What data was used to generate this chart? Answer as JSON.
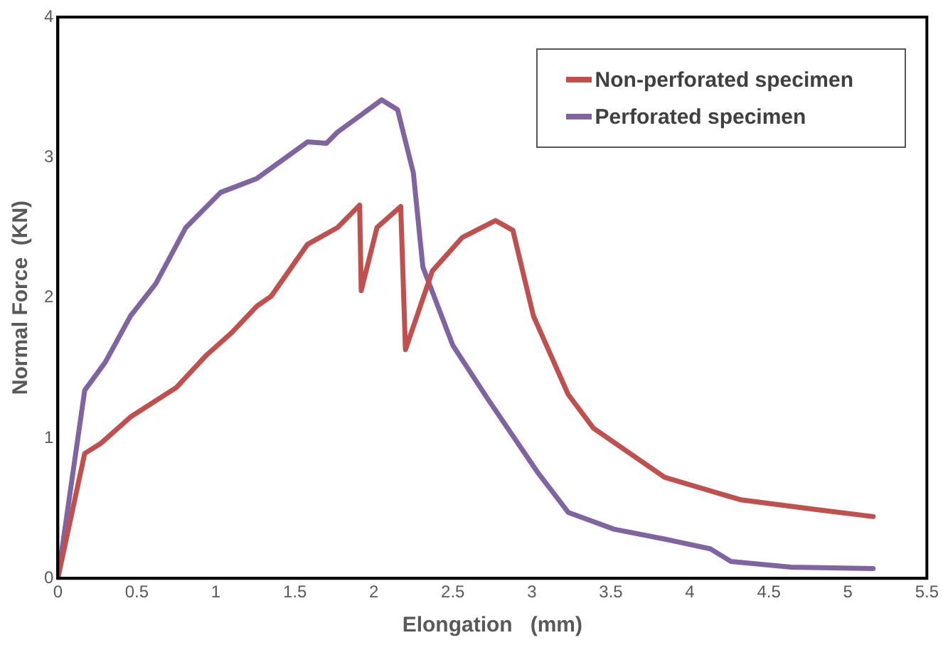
{
  "chart_data": {
    "type": "line",
    "xlabel": "Elongation   (mm)",
    "ylabel": "Normal Force  (KN)",
    "xlim": [
      0,
      5.5
    ],
    "xticks": [
      0,
      0.5,
      1,
      1.5,
      2,
      2.5,
      3,
      3.5,
      4,
      4.5,
      5,
      5.5
    ],
    "ylim": [
      0,
      4
    ],
    "yticks": [
      0,
      1,
      2,
      3,
      4
    ],
    "grid": false,
    "legend": "top right",
    "marker": "none",
    "line_style": "solid",
    "series": [
      {
        "name": "Non-perforated specimen",
        "color": "#c0504d",
        "x": [
          0,
          0.17,
          0.27,
          0.46,
          0.75,
          0.94,
          1.1,
          1.26,
          1.35,
          1.58,
          1.77,
          1.91,
          1.92,
          2.02,
          2.17,
          2.2,
          2.37,
          2.56,
          2.77,
          2.88,
          3.01,
          3.23,
          3.39,
          3.84,
          4.32,
          4.8,
          5.16
        ],
        "values": [
          0,
          0.89,
          0.96,
          1.15,
          1.36,
          1.59,
          1.75,
          1.94,
          2.01,
          2.38,
          2.5,
          2.66,
          2.05,
          2.5,
          2.65,
          1.63,
          2.19,
          2.43,
          2.55,
          2.48,
          1.87,
          1.31,
          1.07,
          0.72,
          0.56,
          0.49,
          0.44
        ]
      },
      {
        "name": "Perforated specimen",
        "color": "#8064a2",
        "x": [
          0,
          0.17,
          0.3,
          0.46,
          0.62,
          0.81,
          1.03,
          1.26,
          1.58,
          1.7,
          1.77,
          2.05,
          2.15,
          2.25,
          2.31,
          2.5,
          2.72,
          3.04,
          3.23,
          3.52,
          3.84,
          4.13,
          4.26,
          4.64,
          5.16
        ],
        "values": [
          0,
          1.34,
          1.54,
          1.87,
          2.1,
          2.5,
          2.75,
          2.85,
          3.11,
          3.1,
          3.18,
          3.41,
          3.34,
          2.89,
          2.22,
          1.66,
          1.28,
          0.75,
          0.47,
          0.35,
          0.28,
          0.21,
          0.12,
          0.08,
          0.07
        ]
      }
    ]
  }
}
